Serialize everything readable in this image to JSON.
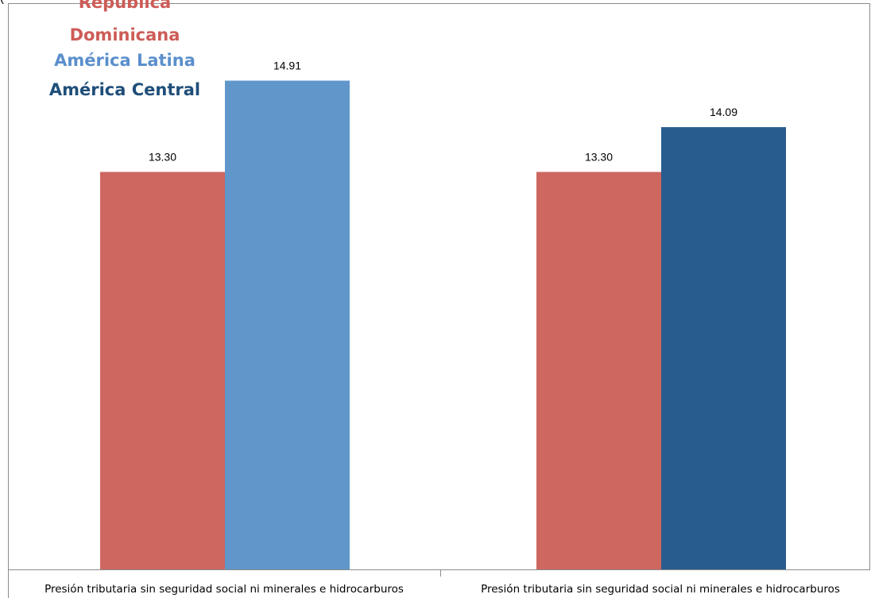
{
  "chart_data": {
    "type": "bar",
    "title_fragment": "(",
    "categories": [
      "Presión tributaria sin seguridad social ni minerales e hidrocarburos",
      "Presión tributaria sin seguridad social ni minerales e hidrocarburos"
    ],
    "groups": [
      {
        "bars": [
          {
            "series": "Republica Dominicana",
            "value": 13.3,
            "label": "13.30",
            "color": "#cd6760"
          },
          {
            "series": "América Latina",
            "value": 14.91,
            "label": "14.91",
            "color": "#6096c9"
          }
        ]
      },
      {
        "bars": [
          {
            "series": "Republica Dominicana",
            "value": 13.3,
            "label": "13.30",
            "color": "#cd6760"
          },
          {
            "series": "América Central",
            "value": 14.09,
            "label": "14.09",
            "color": "#285c8f"
          }
        ]
      }
    ],
    "legend": {
      "placement": "top-left",
      "entries": [
        {
          "lines": [
            "Republica",
            "Dominicana"
          ],
          "color": "#cd5c57"
        },
        {
          "lines": [
            "América Latina"
          ],
          "color": "#5b8fcc"
        },
        {
          "lines": [
            "América Central"
          ],
          "color": "#1f4e79"
        }
      ]
    },
    "grid": false
  }
}
